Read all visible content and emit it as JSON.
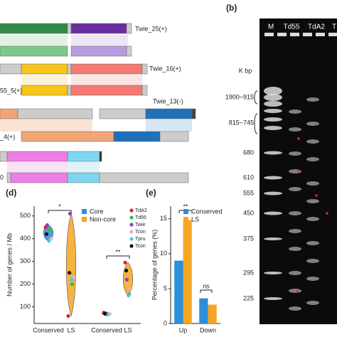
{
  "panels": {
    "b": "(b)",
    "d": "(d)",
    "e": "(e)"
  },
  "diagram": {
    "labels": [
      "Twie_25(+)",
      "Twie_16(+)",
      "55_5(+)",
      "Twie_13(-)",
      "_4(+)",
      "0"
    ]
  },
  "gel": {
    "lanes": [
      "M",
      "Td55",
      "TdA2",
      "T"
    ],
    "unit": "K bp",
    "sizes": [
      "1900~915",
      "815~745",
      "680",
      "610",
      "555",
      "450",
      "375",
      "295",
      "225"
    ]
  },
  "chart_data": [
    {
      "type": "violin",
      "y_label": "Number of genes / Mb",
      "categories": [
        "Conserved",
        "LS",
        "Conserved",
        "LS"
      ],
      "category_colors": [
        "#2a8fdc",
        "#f5a623",
        "#2a8fdc",
        "#f5a623"
      ],
      "group_legend": [
        {
          "name": "Core",
          "color": "#2a8fdc"
        },
        {
          "name": "Non-core",
          "color": "#f5a623"
        }
      ],
      "series": [
        {
          "name": "TdA2",
          "color": "#e8202a",
          "values": [
            450,
            60,
            75,
            295
          ]
        },
        {
          "name": "Td55",
          "color": "#2fbf3a",
          "values": [
            440,
            200,
            70,
            155
          ]
        },
        {
          "name": "Twie",
          "color": "#8a3fc8",
          "values": [
            460,
            510,
            72,
            220
          ]
        },
        {
          "name": "Tcon",
          "color": "#f4a6d8",
          "values": [
            400,
            230,
            68,
            180
          ]
        },
        {
          "name": "Tpru",
          "color": "#3fd0e0",
          "values": [
            390,
            220,
            65,
            150
          ]
        },
        {
          "name": "Tcon",
          "color": "#111111",
          "values": [
            420,
            250,
            70,
            260
          ]
        }
      ],
      "ylim": [
        27,
        543
      ],
      "yticks": [
        100,
        200,
        300,
        400,
        500
      ],
      "annotations": [
        "*",
        "**"
      ]
    },
    {
      "type": "bar",
      "y_label": "Percentage of genes (%)",
      "categories": [
        "Up",
        "Down"
      ],
      "series": [
        {
          "name": "Conserved",
          "color": "#2a8fdc",
          "values": [
            9,
            3.6
          ]
        },
        {
          "name": "LS",
          "color": "#f5a623",
          "values": [
            14.8,
            2.7
          ]
        }
      ],
      "ylim": [
        0,
        16.8
      ],
      "yticks": [
        0,
        5,
        10,
        15
      ],
      "annotations": [
        "**",
        "ns"
      ]
    }
  ]
}
